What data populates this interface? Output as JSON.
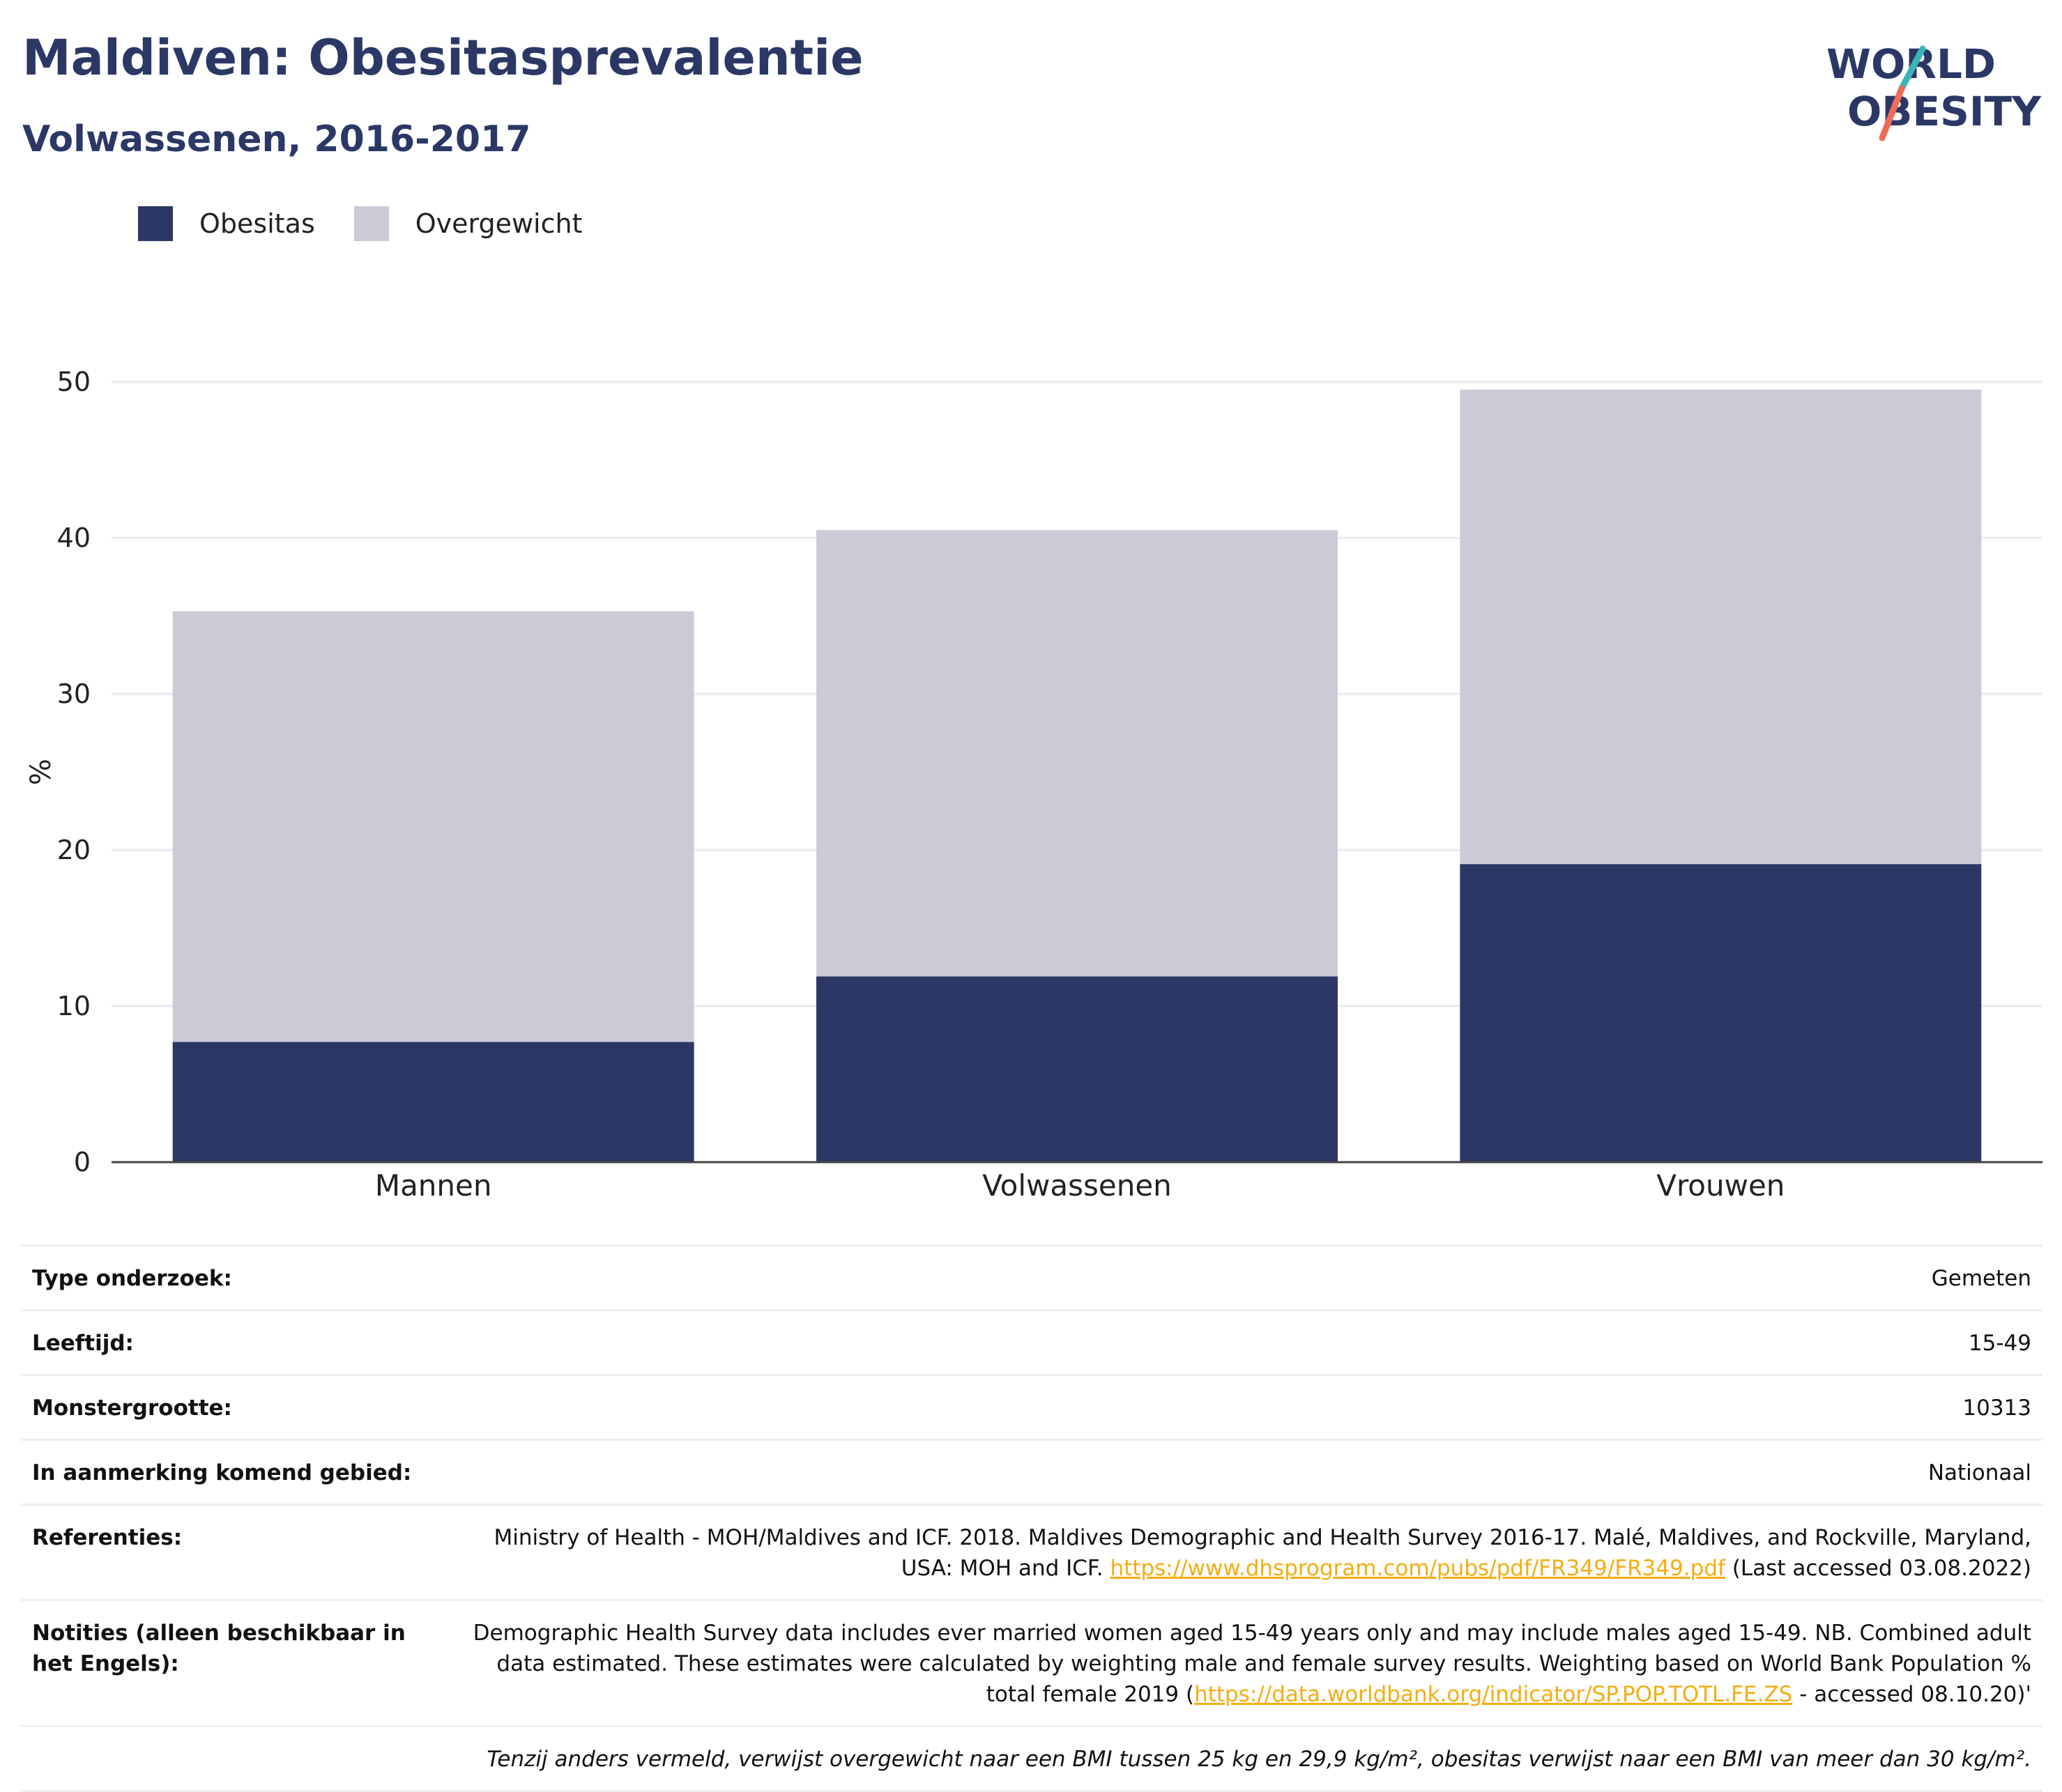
{
  "header": {
    "title": "Maldiven: Obesitasprevalentie",
    "subtitle": "Volwassenen, 2016-2017"
  },
  "logo": {
    "line1": "WORLD",
    "line2": "OBESITY"
  },
  "colors": {
    "obesitas": "#2b3764",
    "overgewicht": "#cacbd7",
    "brand_dark": "#2b3866",
    "logo_teal": "#38b6b6",
    "logo_coral": "#ef6b5a",
    "link": "#f2ae14"
  },
  "chart_data": {
    "type": "bar",
    "stacked": true,
    "categories": [
      "Mannen",
      "Volwassenen",
      "Vrouwen"
    ],
    "series": [
      {
        "name": "Obesitas",
        "values": [
          7.7,
          11.9,
          19.1
        ]
      },
      {
        "name": "Overgewicht",
        "values": [
          27.6,
          28.6,
          30.4
        ]
      }
    ],
    "ylabel": "%",
    "ylim": [
      0,
      50
    ],
    "yticks": [
      "0",
      "10",
      "20",
      "30",
      "40",
      "50"
    ],
    "grid": true,
    "legend_position": "top-left"
  },
  "info": {
    "survey_type": {
      "label": "Type onderzoek:",
      "value": "Gemeten"
    },
    "age": {
      "label": "Leeftijd:",
      "value": "15-49"
    },
    "sample_size": {
      "label": "Monstergrootte:",
      "value": "10313"
    },
    "area": {
      "label": "In aanmerking komend gebied:",
      "value": "Nationaal"
    },
    "references": {
      "label": "Referenties:",
      "text_before": "Ministry of Health - MOH/Maldives and ICF. 2018. Maldives Demographic and Health Survey 2016-17. Malé, Maldives, and Rockville, Maryland, USA: MOH and ICF.",
      "link": "https://www.dhsprogram.com/pubs/pdf/FR349/FR349.pdf",
      "text_after": "(Last accessed 03.08.2022)"
    },
    "notes": {
      "label": "Notities (alleen beschikbaar in het Engels):",
      "text_before": "Demographic Health Survey data includes ever married women aged 15-49 years only and may include males aged 15-49. NB. Combined adult data estimated. These estimates were calculated by weighting male and female survey results. Weighting based on World Bank Population % total female 2019 (",
      "link": "https://data.worldbank.org/indicator/SP.POP.TOTL.FE.ZS",
      "text_after": "- accessed 08.10.20)'"
    },
    "footnote": "Tenzij anders vermeld, verwijst overgewicht naar een BMI tussen 25 kg en 29,9 kg/m², obesitas verwijst naar een BMI van meer dan 30 kg/m²."
  }
}
